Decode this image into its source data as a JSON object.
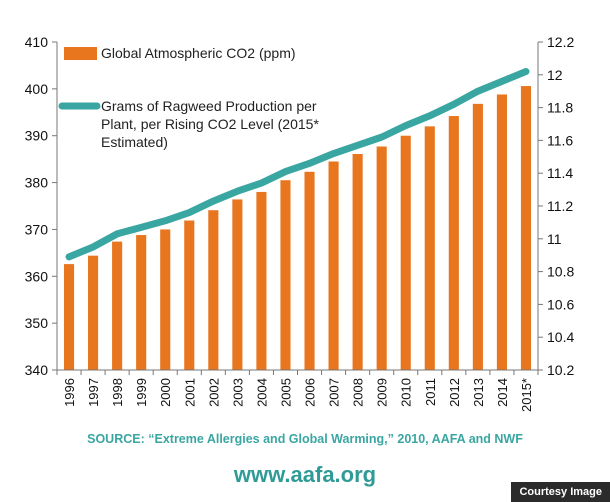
{
  "chart_data": {
    "type": "bar+line",
    "categories": [
      "1996",
      "1997",
      "1998",
      "1999",
      "2000",
      "2001",
      "2002",
      "2003",
      "2004",
      "2005",
      "2006",
      "2007",
      "2008",
      "2009",
      "2010",
      "2011",
      "2012",
      "2013",
      "2014",
      "2015*"
    ],
    "series": [
      {
        "name": "Global Atmospheric CO2 (ppm)",
        "type": "bar",
        "axis": "left",
        "color": "#e8761e",
        "values": [
          362.6,
          364.4,
          367.4,
          368.8,
          370.0,
          371.9,
          374.1,
          376.4,
          378.0,
          380.5,
          382.3,
          384.5,
          386.1,
          387.7,
          390.0,
          392.0,
          394.2,
          396.8,
          398.8,
          400.6
        ]
      },
      {
        "name": "Grams of Ragweed  Production per Plant, per Rising CO2 Level (2015* Estimated)",
        "legend_lines": [
          "Grams of Ragweed  Production per",
          "Plant, per Rising CO2 Level (2015*",
          "Estimated)"
        ],
        "type": "line",
        "axis": "right",
        "color": "#3aa6a2",
        "values": [
          10.89,
          10.95,
          11.03,
          11.07,
          11.11,
          11.16,
          11.23,
          11.29,
          11.34,
          11.41,
          11.46,
          11.52,
          11.57,
          11.62,
          11.69,
          11.75,
          11.82,
          11.9,
          11.96,
          12.02
        ]
      }
    ],
    "y_left": {
      "min": 340,
      "max": 410,
      "ticks": [
        "340",
        "350",
        "360",
        "370",
        "380",
        "390",
        "400",
        "410"
      ]
    },
    "y_right": {
      "min": 10.2,
      "max": 12.2,
      "ticks": [
        "10.2",
        "10.4",
        "10.6",
        "10.8",
        "11",
        "11.2",
        "11.4",
        "11.6",
        "11.8",
        "12",
        "12.2"
      ]
    },
    "grid": false,
    "legend_position": "top-left"
  },
  "source": "SOURCE: “Extreme Allergies and Global Warming,” 2010, AAFA and NWF",
  "website": "www.aafa.org",
  "credit": "Courtesy Image"
}
